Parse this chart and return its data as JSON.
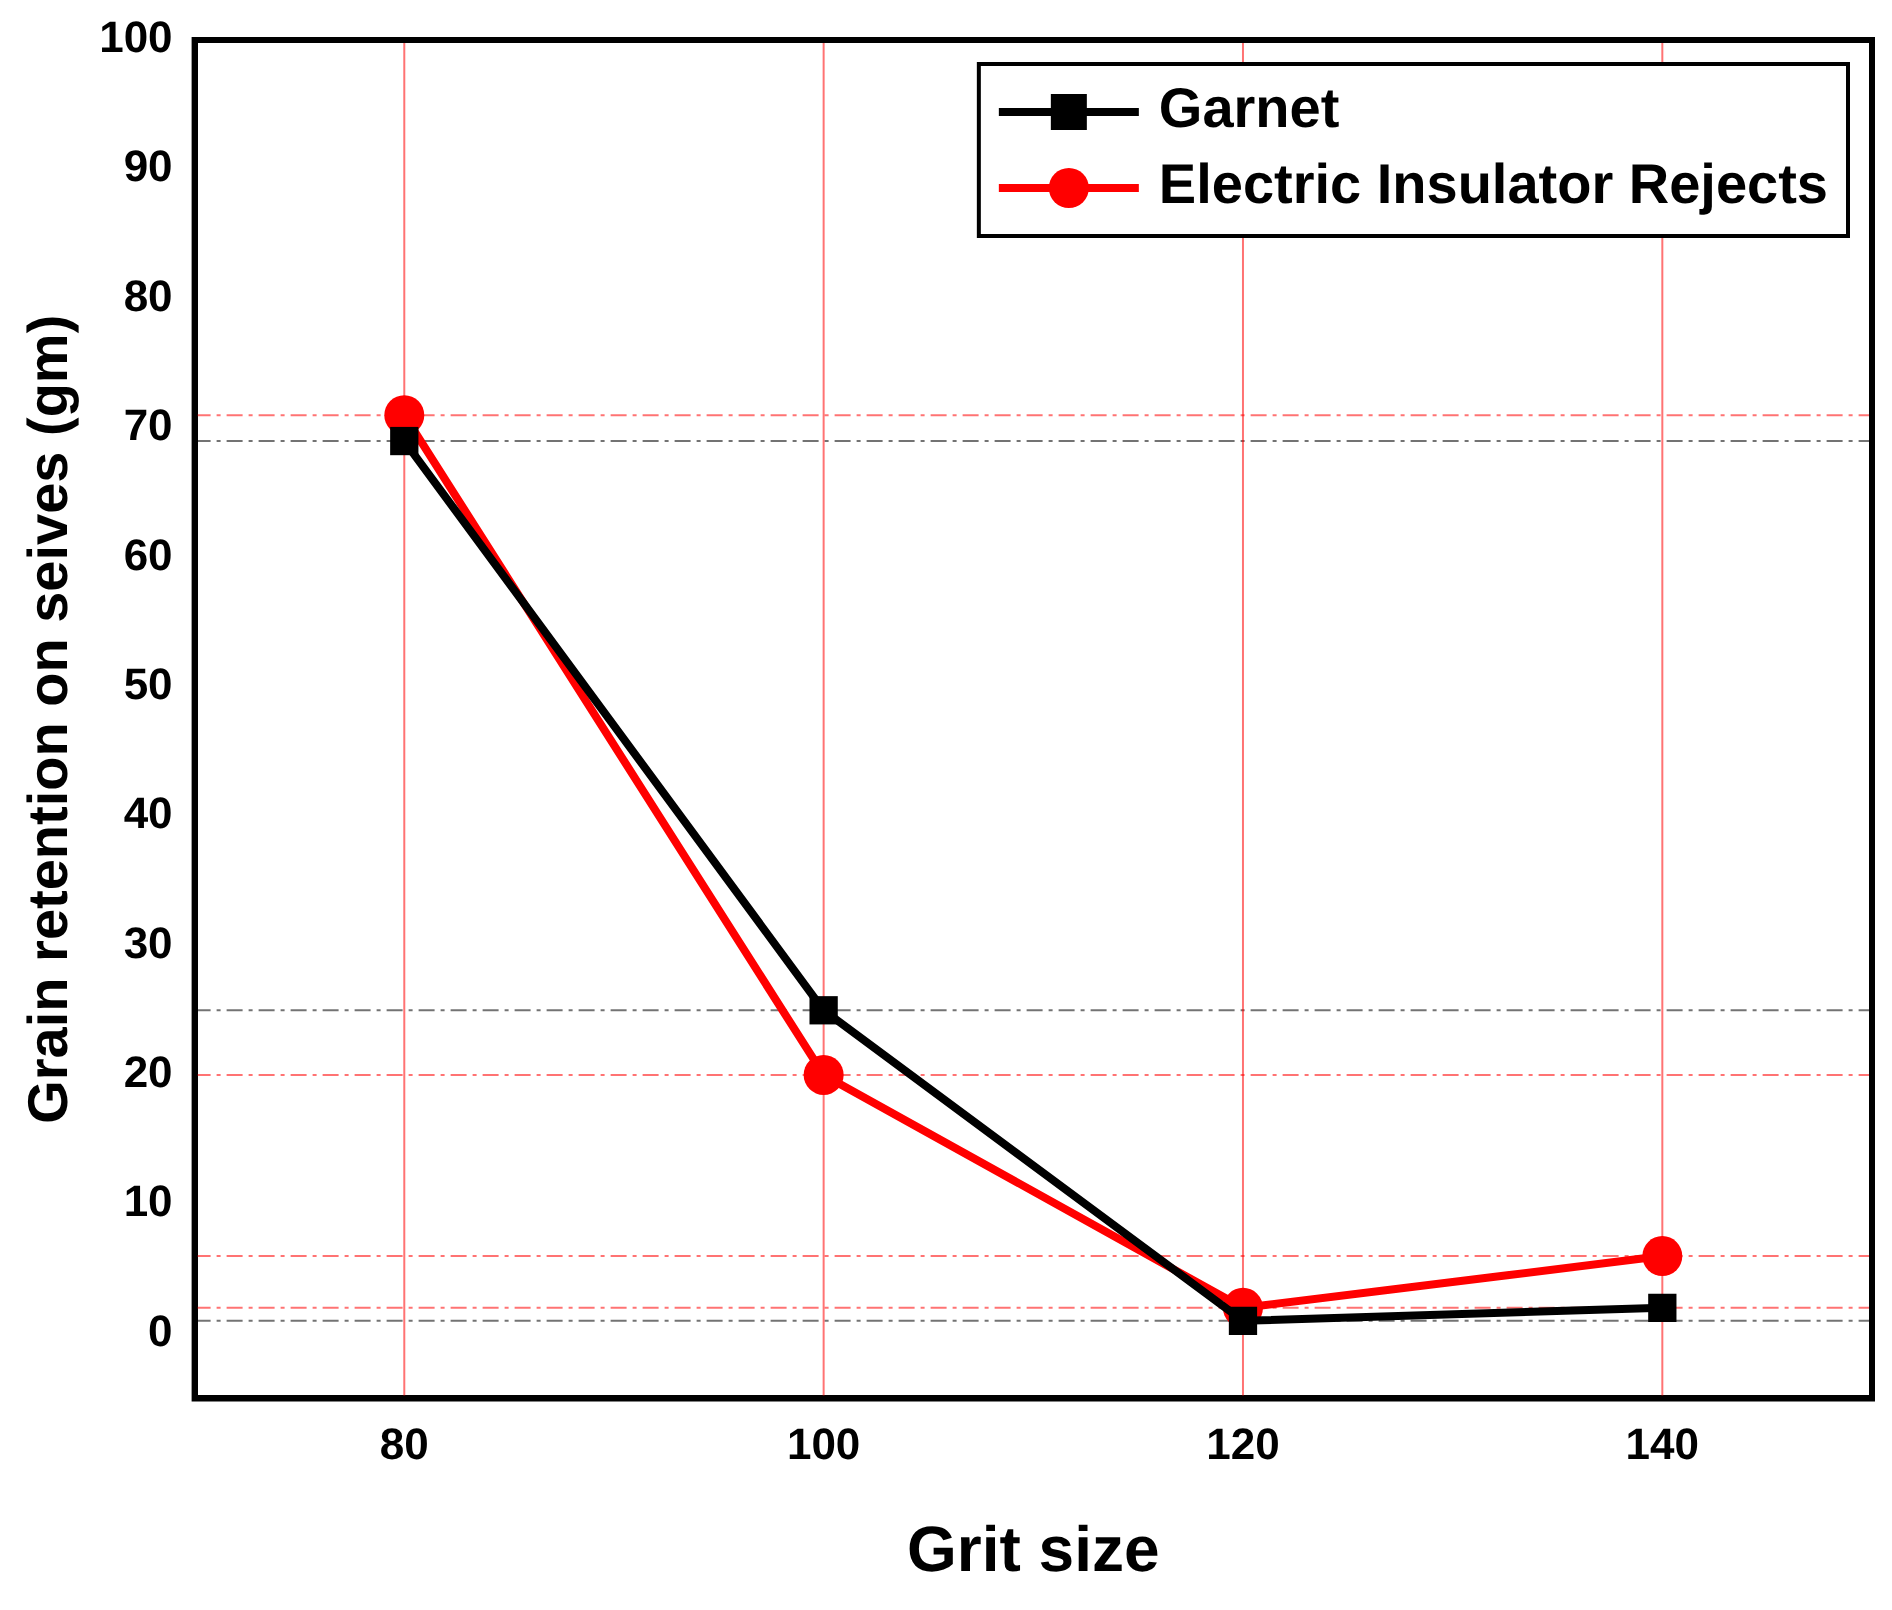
{
  "chart_data": {
    "type": "line",
    "xlabel": "Grit size",
    "ylabel": "Grain retention on seives (gm)",
    "x": [
      80,
      100,
      120,
      140
    ],
    "series": [
      {
        "name": "Garnet",
        "color": "#000000",
        "marker": "square",
        "values": [
          69,
          25,
          1,
          2
        ]
      },
      {
        "name": "Electric Insulator Rejects",
        "color": "#ff0000",
        "marker": "circle",
        "values": [
          71,
          20,
          2,
          6
        ]
      }
    ],
    "xlim": [
      70,
      150
    ],
    "xticks": [
      80,
      100,
      120,
      140
    ],
    "ylim": [
      -5,
      100
    ],
    "yticks": [
      0,
      10,
      20,
      30,
      40,
      50,
      60,
      70,
      80,
      90,
      100
    ],
    "ref_lines": [
      {
        "axis": "y",
        "value": 71,
        "color": "#ff0000",
        "line_style": "dashed"
      },
      {
        "axis": "y",
        "value": 69,
        "color": "#000000",
        "line_style": "dashed"
      },
      {
        "axis": "y",
        "value": 25,
        "color": "#000000",
        "line_style": "dashed"
      },
      {
        "axis": "y",
        "value": 20,
        "color": "#ff0000",
        "line_style": "dashed"
      },
      {
        "axis": "y",
        "value": 6,
        "color": "#ff0000",
        "line_style": "dashed"
      },
      {
        "axis": "y",
        "value": 2,
        "color": "#ff0000",
        "line_style": "dashed"
      },
      {
        "axis": "y",
        "value": 1,
        "color": "#000000",
        "line_style": "dashed"
      },
      {
        "axis": "x",
        "value": 80,
        "color": "#ff0000",
        "line_style": "solid"
      },
      {
        "axis": "x",
        "value": 100,
        "color": "#ff0000",
        "line_style": "solid"
      },
      {
        "axis": "x",
        "value": 120,
        "color": "#ff0000",
        "line_style": "solid"
      },
      {
        "axis": "x",
        "value": 140,
        "color": "#ff0000",
        "line_style": "solid"
      }
    ],
    "grid": false,
    "legend": "top right",
    "line_style": "solid"
  }
}
